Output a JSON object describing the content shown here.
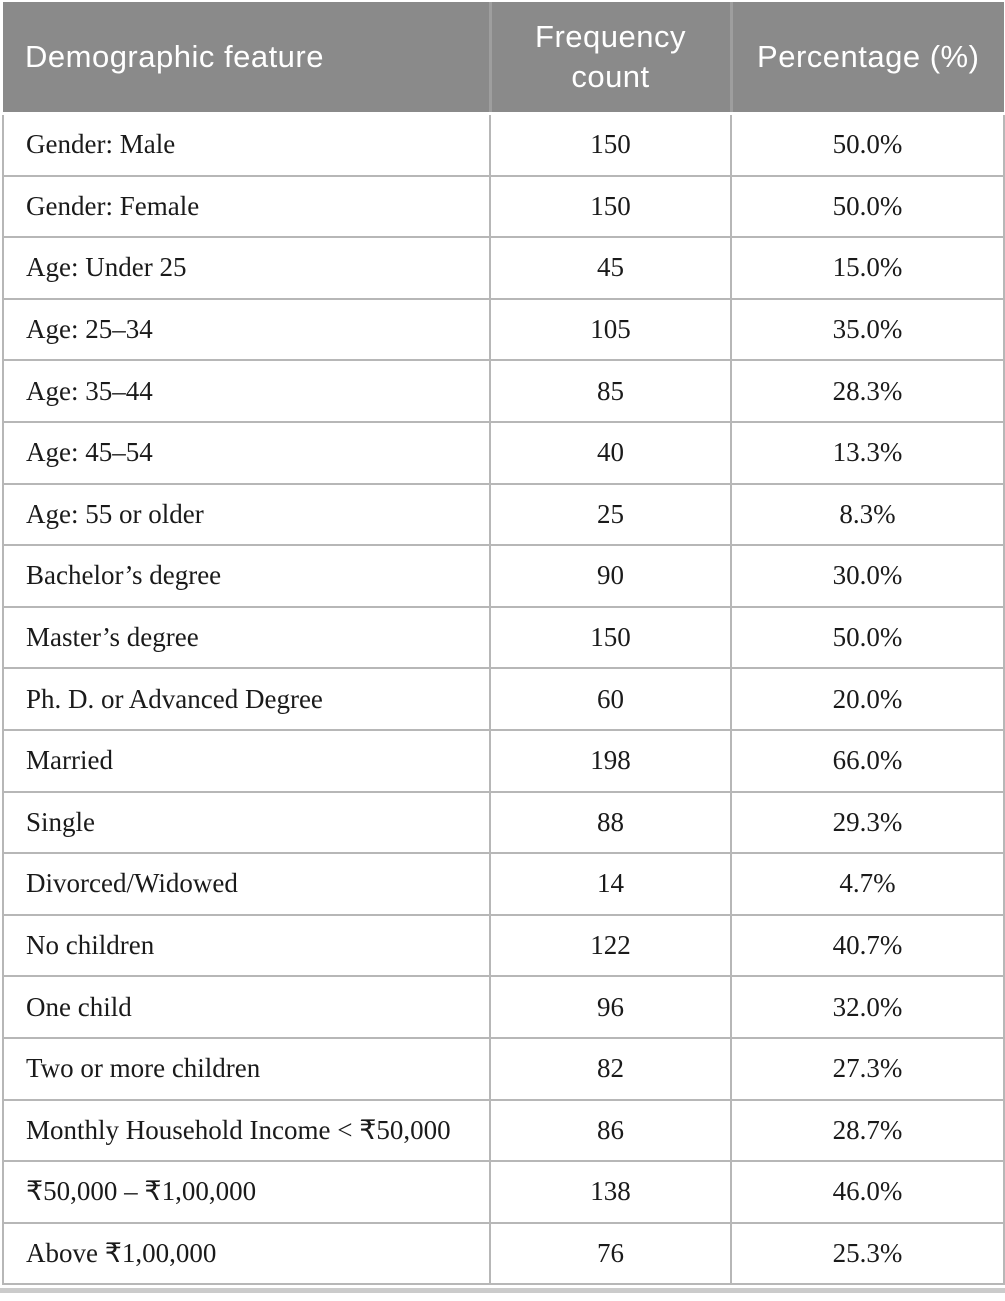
{
  "colors": {
    "header_background": "#8a8a8a",
    "header_text": "#ffffff",
    "header_separator": "#9e9e9e",
    "body_border": "#b7b7b7",
    "body_text": "#1a1a1a",
    "bottom_rule": "#cbcbcb"
  },
  "table": {
    "columns": [
      {
        "label": "Demographic feature"
      },
      {
        "label": "Frequency count"
      },
      {
        "label": "Percentage (%)"
      }
    ],
    "rows": [
      {
        "feature": "Gender: Male",
        "count": "150",
        "percentage": "50.0%"
      },
      {
        "feature": "Gender: Female",
        "count": "150",
        "percentage": "50.0%"
      },
      {
        "feature": "Age: Under 25",
        "count": "45",
        "percentage": "15.0%"
      },
      {
        "feature": "Age: 25–34",
        "count": "105",
        "percentage": "35.0%"
      },
      {
        "feature": "Age: 35–44",
        "count": "85",
        "percentage": "28.3%"
      },
      {
        "feature": "Age: 45–54",
        "count": "40",
        "percentage": "13.3%"
      },
      {
        "feature": "Age: 55 or older",
        "count": "25",
        "percentage": "8.3%"
      },
      {
        "feature": "Bachelor’s degree",
        "count": "90",
        "percentage": "30.0%"
      },
      {
        "feature": "Master’s degree",
        "count": "150",
        "percentage": "50.0%"
      },
      {
        "feature": "Ph. D. or Advanced Degree",
        "count": "60",
        "percentage": "20.0%"
      },
      {
        "feature": "Married",
        "count": "198",
        "percentage": "66.0%"
      },
      {
        "feature": "Single",
        "count": "88",
        "percentage": "29.3%"
      },
      {
        "feature": "Divorced/Widowed",
        "count": "14",
        "percentage": "4.7%"
      },
      {
        "feature": "No children",
        "count": "122",
        "percentage": "40.7%"
      },
      {
        "feature": "One child",
        "count": "96",
        "percentage": "32.0%"
      },
      {
        "feature": "Two or more children",
        "count": "82",
        "percentage": "27.3%"
      },
      {
        "feature": "Monthly Household Income < ₹50,000",
        "count": "86",
        "percentage": "28.7%"
      },
      {
        "feature": "₹50,000 – ₹1,00,000",
        "count": "138",
        "percentage": "46.0%"
      },
      {
        "feature": "Above ₹1,00,000",
        "count": "76",
        "percentage": "25.3%"
      }
    ]
  }
}
